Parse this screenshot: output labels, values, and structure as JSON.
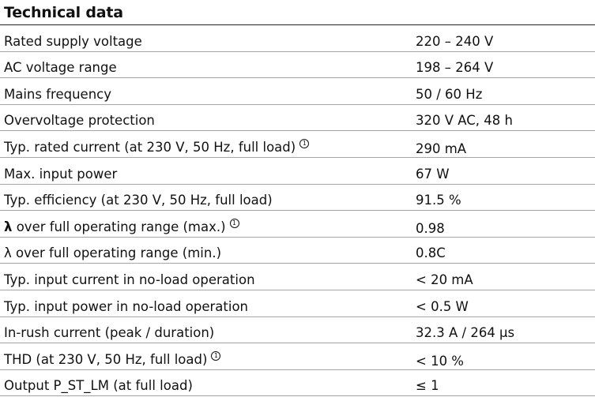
{
  "title": "Technical data",
  "footnote_marker": "1",
  "rows": [
    {
      "label": "Rated supply voltage",
      "value": "220 – 240 V"
    },
    {
      "label": "AC voltage range",
      "value": "198 – 264 V"
    },
    {
      "label": "Mains frequency",
      "value": "50 / 60 Hz"
    },
    {
      "label": "Overvoltage protection",
      "value": "320 V AC, 48 h"
    },
    {
      "label": "Typ. rated current (at 230 V, 50 Hz, full load)",
      "value": "290 mA"
    },
    {
      "label": "Max. input power",
      "value": "67 W"
    },
    {
      "label": "Typ. efficiency (at 230 V, 50 Hz, full load)",
      "value": "91.5 %"
    },
    {
      "label_symbol": "λ",
      "label": "over full operating range (max.)",
      "value": "0.98"
    },
    {
      "label": "λ over full operating range (min.)",
      "value": "0.8C"
    },
    {
      "label": "Typ. input current in no-load operation",
      "value": "< 20 mA"
    },
    {
      "label": "Typ. input power in no-load operation",
      "value": "< 0.5 W"
    },
    {
      "label": "In-rush current (peak / duration)",
      "value": "32.3 A / 264 µs"
    },
    {
      "label": "THD (at 230 V, 50 Hz, full load)",
      "value": "< 10 %"
    },
    {
      "label": "Output P_ST_LM (at full load)",
      "value": "≤ 1"
    }
  ]
}
